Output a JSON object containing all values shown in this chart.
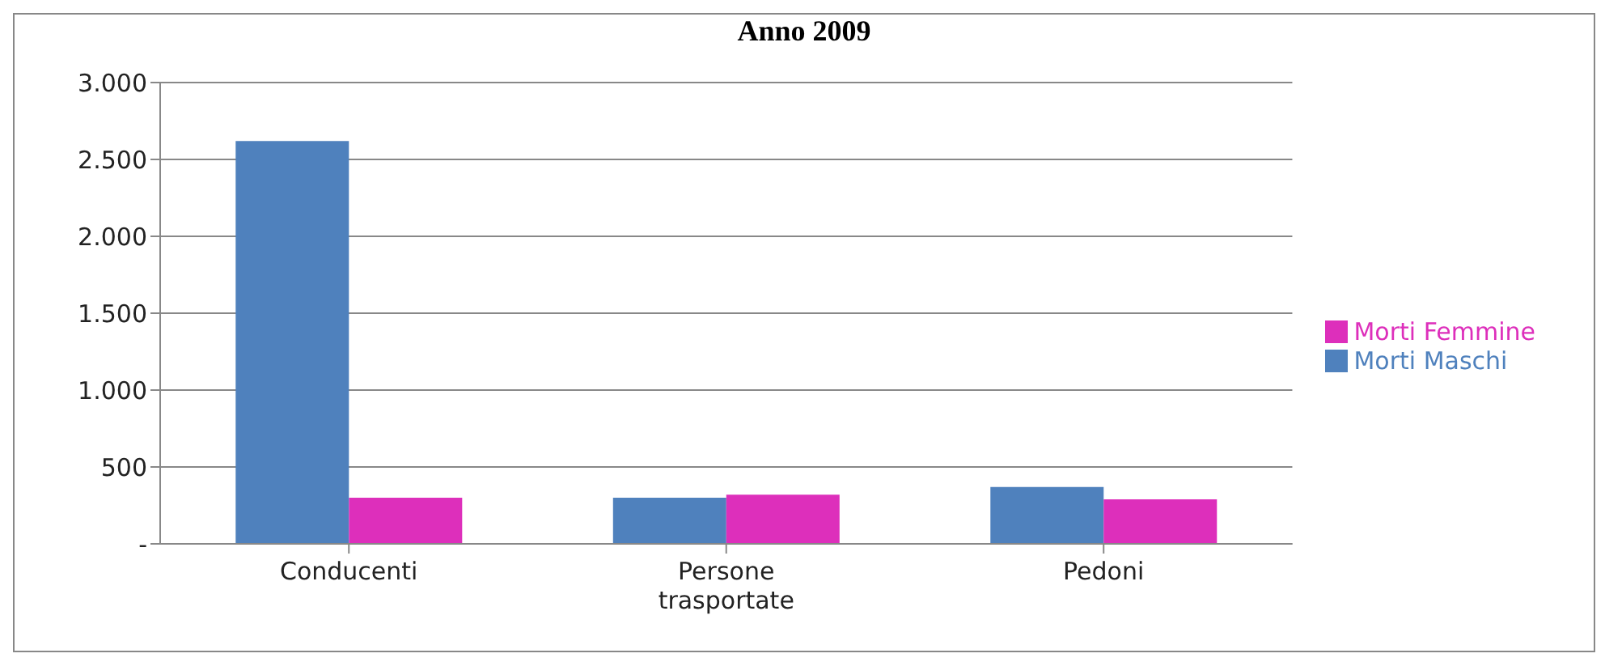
{
  "chart_data": {
    "type": "bar",
    "title": "Anno 2009",
    "categories": [
      "Conducenti",
      "Persone trasportate",
      "Pedoni"
    ],
    "series": [
      {
        "name": "Morti Maschi",
        "color": "#4f81bd",
        "values": [
          2620,
          300,
          370
        ]
      },
      {
        "name": "Morti Femmine",
        "color": "#dd2fbb",
        "values": [
          300,
          320,
          290
        ]
      }
    ],
    "ylim": [
      0,
      3000
    ],
    "yticks": [
      {
        "value": 0,
        "label": "-"
      },
      {
        "value": 500,
        "label": "500"
      },
      {
        "value": 1000,
        "label": "1.000"
      },
      {
        "value": 1500,
        "label": "1.500"
      },
      {
        "value": 2000,
        "label": "2.000"
      },
      {
        "value": 2500,
        "label": "2.500"
      },
      {
        "value": 3000,
        "label": "3.000"
      }
    ],
    "grid": "y",
    "legend": "right"
  }
}
